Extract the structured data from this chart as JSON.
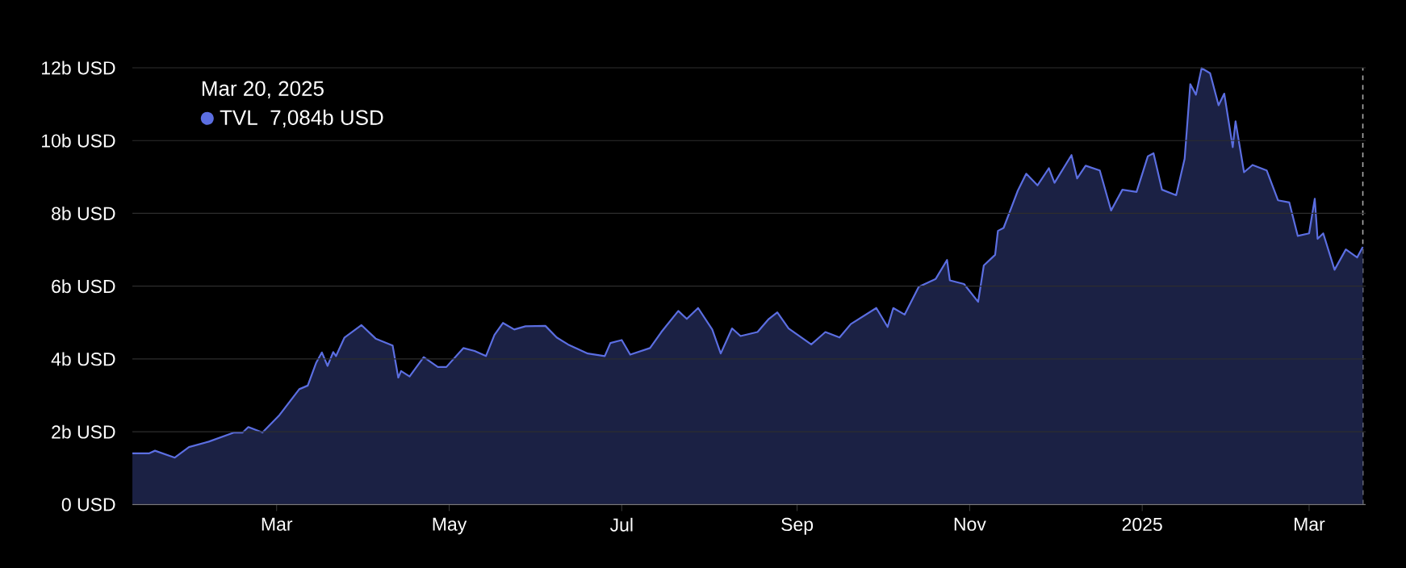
{
  "chart_data": {
    "type": "area",
    "xlim": [
      "2024-01-10",
      "2025-03-21"
    ],
    "xticks": [
      {
        "value": "2024-03-01",
        "label": "Mar"
      },
      {
        "value": "2024-05-01",
        "label": "May"
      },
      {
        "value": "2024-07-01",
        "label": "Jul"
      },
      {
        "value": "2024-09-01",
        "label": "Sep"
      },
      {
        "value": "2024-11-01",
        "label": "Nov"
      },
      {
        "value": "2025-01-01",
        "label": "2025"
      },
      {
        "value": "2025-03-01",
        "label": "Mar"
      }
    ],
    "ylim": [
      0,
      12
    ],
    "yticks": [
      {
        "value": 0,
        "label": "0 USD"
      },
      {
        "value": 2,
        "label": "2b USD"
      },
      {
        "value": 4,
        "label": "4b USD"
      },
      {
        "value": 6,
        "label": "6b USD"
      },
      {
        "value": 8,
        "label": "8b USD"
      },
      {
        "value": 10,
        "label": "10b USD"
      },
      {
        "value": 12,
        "label": "12b USD"
      }
    ],
    "grid": "y",
    "legend": "top left",
    "annotations": [
      "Mar 20, 2025",
      "7,084b USD"
    ],
    "ref_lines": [
      {
        "axis": "x",
        "value": "2025-03-20",
        "color": "#aaaaaa",
        "line_style": "dashed"
      }
    ],
    "series": [
      {
        "name": "TVL",
        "color": "#5b6ee1",
        "x": [
          "2024-01-10",
          "2024-01-16",
          "2024-01-18",
          "2024-01-25",
          "2024-01-30",
          "2024-02-06",
          "2024-02-15",
          "2024-02-18",
          "2024-02-20",
          "2024-02-25",
          "2024-03-02",
          "2024-03-09",
          "2024-03-12",
          "2024-03-15",
          "2024-03-17",
          "2024-03-19",
          "2024-03-21",
          "2024-03-22",
          "2024-03-25",
          "2024-03-31",
          "2024-04-05",
          "2024-04-11",
          "2024-04-13",
          "2024-04-14",
          "2024-04-17",
          "2024-04-22",
          "2024-04-27",
          "2024-04-30",
          "2024-05-06",
          "2024-05-10",
          "2024-05-14",
          "2024-05-17",
          "2024-05-20",
          "2024-05-24",
          "2024-05-28",
          "2024-06-04",
          "2024-06-08",
          "2024-06-12",
          "2024-06-19",
          "2024-06-25",
          "2024-06-27",
          "2024-07-01",
          "2024-07-04",
          "2024-07-11",
          "2024-07-15",
          "2024-07-21",
          "2024-07-24",
          "2024-07-28",
          "2024-08-02",
          "2024-08-05",
          "2024-08-09",
          "2024-08-12",
          "2024-08-18",
          "2024-08-22",
          "2024-08-25",
          "2024-08-29",
          "2024-09-06",
          "2024-09-11",
          "2024-09-16",
          "2024-09-20",
          "2024-09-29",
          "2024-10-03",
          "2024-10-05",
          "2024-10-09",
          "2024-10-14",
          "2024-10-20",
          "2024-10-24",
          "2024-10-25",
          "2024-10-30",
          "2024-11-04",
          "2024-11-06",
          "2024-11-10",
          "2024-11-11",
          "2024-11-13",
          "2024-11-18",
          "2024-11-21",
          "2024-11-25",
          "2024-11-29",
          "2024-12-01",
          "2024-12-07",
          "2024-12-09",
          "2024-12-12",
          "2024-12-17",
          "2024-12-21",
          "2024-12-25",
          "2024-12-30",
          "2025-01-03",
          "2025-01-05",
          "2025-01-08",
          "2025-01-13",
          "2025-01-16",
          "2025-01-18",
          "2025-01-20",
          "2025-01-22",
          "2025-01-25",
          "2025-01-28",
          "2025-01-30",
          "2025-02-02",
          "2025-02-03",
          "2025-02-06",
          "2025-02-09",
          "2025-02-14",
          "2025-02-18",
          "2025-02-22",
          "2025-02-25",
          "2025-03-01",
          "2025-03-03",
          "2025-03-04",
          "2025-03-06",
          "2025-03-10",
          "2025-03-14",
          "2025-03-18",
          "2025-03-20"
        ],
        "values": [
          1.41,
          1.41,
          1.48,
          1.29,
          1.58,
          1.73,
          1.98,
          1.98,
          2.13,
          1.98,
          2.46,
          3.17,
          3.27,
          3.9,
          4.18,
          3.81,
          4.19,
          4.08,
          4.59,
          4.93,
          4.56,
          4.37,
          3.49,
          3.67,
          3.52,
          4.05,
          3.78,
          3.78,
          4.3,
          4.22,
          4.08,
          4.66,
          4.99,
          4.81,
          4.9,
          4.91,
          4.59,
          4.4,
          4.15,
          4.08,
          4.44,
          4.52,
          4.12,
          4.3,
          4.74,
          5.32,
          5.1,
          5.4,
          4.81,
          4.15,
          4.84,
          4.63,
          4.74,
          5.1,
          5.28,
          4.84,
          4.4,
          4.74,
          4.59,
          4.96,
          5.4,
          4.88,
          5.4,
          5.22,
          5.98,
          6.2,
          6.72,
          6.16,
          6.06,
          5.57,
          6.57,
          6.86,
          7.52,
          7.6,
          8.62,
          9.09,
          8.77,
          9.24,
          8.84,
          9.6,
          8.96,
          9.31,
          9.18,
          8.08,
          8.65,
          8.59,
          9.57,
          9.65,
          8.65,
          8.5,
          9.5,
          11.55,
          11.26,
          11.99,
          11.85,
          10.97,
          11.29,
          9.82,
          10.53,
          9.13,
          9.33,
          9.18,
          8.36,
          8.3,
          7.38,
          7.45,
          8.4,
          7.3,
          7.45,
          6.45,
          7.01,
          6.79,
          7.08
        ]
      }
    ]
  }
}
